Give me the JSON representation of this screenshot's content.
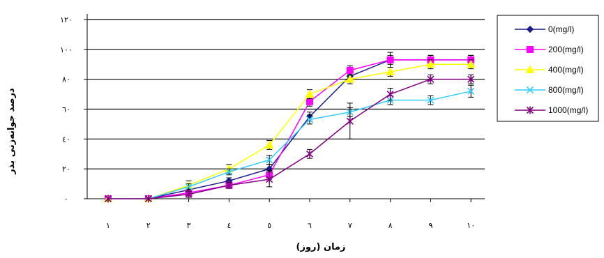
{
  "chart_data": {
    "type": "line",
    "xlabel": "زمان (روز)",
    "ylabel": "درصد جوانه‌زنی بذر",
    "categories": [
      "۱",
      "۲",
      "۳",
      "٤",
      "٥",
      "٦",
      "٧",
      "٨",
      "٩",
      "١٠"
    ],
    "x": [
      1,
      2,
      3,
      4,
      5,
      6,
      7,
      8,
      9,
      10
    ],
    "ylim": [
      0,
      120
    ],
    "yticks": [
      0,
      20,
      40,
      60,
      80,
      100,
      120
    ],
    "ytick_labels": [
      "٠",
      "٢٠",
      "٤٠",
      "٦٠",
      "٨٠",
      "١٠٠",
      "١٢٠"
    ],
    "grid": true,
    "legend_position": "right",
    "series": [
      {
        "name": "0(mg/l)",
        "color": "#1c1c8a",
        "marker": "diamond",
        "values": [
          0,
          0,
          6,
          12,
          20,
          55,
          82,
          93,
          93,
          93
        ],
        "errors": [
          0,
          0,
          2,
          2,
          3,
          3,
          3,
          5,
          3,
          3
        ]
      },
      {
        "name": "200(mg/l)",
        "color": "#ff00ff",
        "marker": "square",
        "values": [
          0,
          0,
          4,
          9,
          16,
          65,
          86,
          93,
          93,
          93
        ],
        "errors": [
          0,
          0,
          2,
          2,
          3,
          3,
          3,
          3,
          3,
          3
        ]
      },
      {
        "name": "400(mg/l)",
        "color": "#ffff00",
        "marker": "triangle",
        "values": [
          0,
          0,
          9,
          20,
          36,
          70,
          80,
          85,
          90,
          90
        ],
        "errors": [
          0,
          0,
          3,
          3,
          3,
          3,
          3,
          3,
          3,
          3
        ]
      },
      {
        "name": "800(mg/l)",
        "color": "#33ccff",
        "marker": "x",
        "values": [
          0,
          0,
          8,
          18,
          26,
          53,
          58,
          66,
          66,
          72
        ],
        "errors": [
          0,
          0,
          2,
          2,
          3,
          3,
          3,
          3,
          3,
          4
        ]
      },
      {
        "name": "1000(mg/l)",
        "color": "#800080",
        "marker": "star",
        "values": [
          0,
          0,
          3,
          9,
          13,
          30,
          52,
          70,
          80,
          80
        ],
        "errors": [
          0,
          0,
          2,
          2,
          5,
          3,
          12,
          4,
          3,
          3
        ]
      }
    ]
  }
}
